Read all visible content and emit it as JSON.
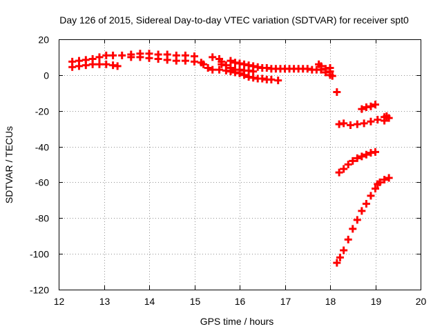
{
  "chart_data": {
    "type": "scatter",
    "title": "Day 126 of 2015, Sidereal Day-to-day VTEC variation (SDTVAR) for receiver spt0",
    "xlabel": "GPS time / hours",
    "ylabel": "SDTVAR / TECUs",
    "xlim": [
      12,
      20
    ],
    "ylim": [
      -120,
      20
    ],
    "xticks": [
      12,
      13,
      14,
      15,
      16,
      17,
      18,
      19,
      20
    ],
    "yticks": [
      20,
      0,
      -20,
      -40,
      -60,
      -80,
      -100,
      -120
    ],
    "grid": true,
    "marker": "plus",
    "series": [
      {
        "name": "SDTVAR",
        "color": "#ff0000",
        "points": [
          [
            12.3,
            4.5
          ],
          [
            12.3,
            7.5
          ],
          [
            12.45,
            5
          ],
          [
            12.45,
            8
          ],
          [
            12.6,
            5.5
          ],
          [
            12.6,
            8.5
          ],
          [
            12.75,
            6
          ],
          [
            12.75,
            9
          ],
          [
            12.9,
            6
          ],
          [
            12.9,
            10
          ],
          [
            13.05,
            6
          ],
          [
            13.05,
            11
          ],
          [
            13.2,
            5.5
          ],
          [
            13.2,
            11
          ],
          [
            13.3,
            5
          ],
          [
            13.4,
            11
          ],
          [
            13.6,
            11.5
          ],
          [
            13.6,
            10
          ],
          [
            13.8,
            12
          ],
          [
            13.8,
            10
          ],
          [
            14.0,
            12
          ],
          [
            14.0,
            9.5
          ],
          [
            14.2,
            11.5
          ],
          [
            14.2,
            9
          ],
          [
            14.4,
            11.5
          ],
          [
            14.4,
            8.5
          ],
          [
            14.6,
            11
          ],
          [
            14.6,
            8
          ],
          [
            14.8,
            11
          ],
          [
            14.8,
            8
          ],
          [
            15.0,
            10.5
          ],
          [
            15.0,
            7.5
          ],
          [
            15.15,
            7
          ],
          [
            15.2,
            6
          ],
          [
            15.3,
            4
          ],
          [
            15.4,
            10
          ],
          [
            15.4,
            3
          ],
          [
            15.55,
            9
          ],
          [
            15.55,
            3
          ],
          [
            15.6,
            7.5
          ],
          [
            15.6,
            6
          ],
          [
            15.7,
            5.5
          ],
          [
            15.7,
            2.5
          ],
          [
            15.8,
            8
          ],
          [
            15.8,
            4
          ],
          [
            15.8,
            2
          ],
          [
            15.9,
            7
          ],
          [
            15.9,
            3
          ],
          [
            15.9,
            1.5
          ],
          [
            16.0,
            6.5
          ],
          [
            16.0,
            3
          ],
          [
            16.0,
            1
          ],
          [
            16.1,
            6
          ],
          [
            16.1,
            2.5
          ],
          [
            16.1,
            0
          ],
          [
            16.2,
            5.5
          ],
          [
            16.2,
            2.5
          ],
          [
            16.2,
            -1
          ],
          [
            16.3,
            5
          ],
          [
            16.3,
            2
          ],
          [
            16.3,
            -1.5
          ],
          [
            16.4,
            4.5
          ],
          [
            16.4,
            -2
          ],
          [
            16.5,
            4
          ],
          [
            16.5,
            -2
          ],
          [
            16.6,
            4
          ],
          [
            16.6,
            -2.5
          ],
          [
            16.7,
            3.5
          ],
          [
            16.7,
            -2.5
          ],
          [
            16.8,
            3.5
          ],
          [
            16.85,
            -3
          ],
          [
            16.9,
            3.5
          ],
          [
            17.0,
            3.5
          ],
          [
            17.1,
            3.5
          ],
          [
            17.2,
            3.5
          ],
          [
            17.3,
            3.5
          ],
          [
            17.4,
            3.5
          ],
          [
            17.5,
            3.5
          ],
          [
            17.6,
            3
          ],
          [
            17.7,
            3
          ],
          [
            17.75,
            6
          ],
          [
            17.8,
            3
          ],
          [
            17.8,
            5
          ],
          [
            17.9,
            3.5
          ],
          [
            17.9,
            1.5
          ],
          [
            18.0,
            4
          ],
          [
            18.0,
            2
          ],
          [
            18.0,
            0
          ],
          [
            18.05,
            -0.5
          ],
          [
            18.15,
            -9.5
          ],
          [
            18.2,
            -27.5
          ],
          [
            18.3,
            -27
          ],
          [
            18.45,
            -28
          ],
          [
            18.6,
            -27.5
          ],
          [
            18.75,
            -27
          ],
          [
            18.9,
            -26
          ],
          [
            19.05,
            -25
          ],
          [
            18.7,
            -19
          ],
          [
            18.8,
            -18
          ],
          [
            18.9,
            -17.5
          ],
          [
            19.0,
            -16.5
          ],
          [
            19.2,
            -23.5
          ],
          [
            19.2,
            -25.5
          ],
          [
            19.25,
            -23
          ],
          [
            19.3,
            -24
          ],
          [
            18.2,
            -54.5
          ],
          [
            18.3,
            -52.5
          ],
          [
            18.4,
            -50
          ],
          [
            18.5,
            -48
          ],
          [
            18.6,
            -46.5
          ],
          [
            18.7,
            -45.5
          ],
          [
            18.8,
            -44.5
          ],
          [
            18.9,
            -43.5
          ],
          [
            19.0,
            -43
          ],
          [
            19.1,
            -60
          ],
          [
            19.2,
            -58.5
          ],
          [
            19.3,
            -57.5
          ],
          [
            18.15,
            -105
          ],
          [
            18.22,
            -102
          ],
          [
            18.3,
            -98
          ],
          [
            18.4,
            -92
          ],
          [
            18.5,
            -86
          ],
          [
            18.6,
            -81
          ],
          [
            18.7,
            -76
          ],
          [
            18.8,
            -72
          ],
          [
            18.9,
            -67.5
          ],
          [
            19.0,
            -63.5
          ],
          [
            19.05,
            -61
          ]
        ]
      }
    ]
  }
}
